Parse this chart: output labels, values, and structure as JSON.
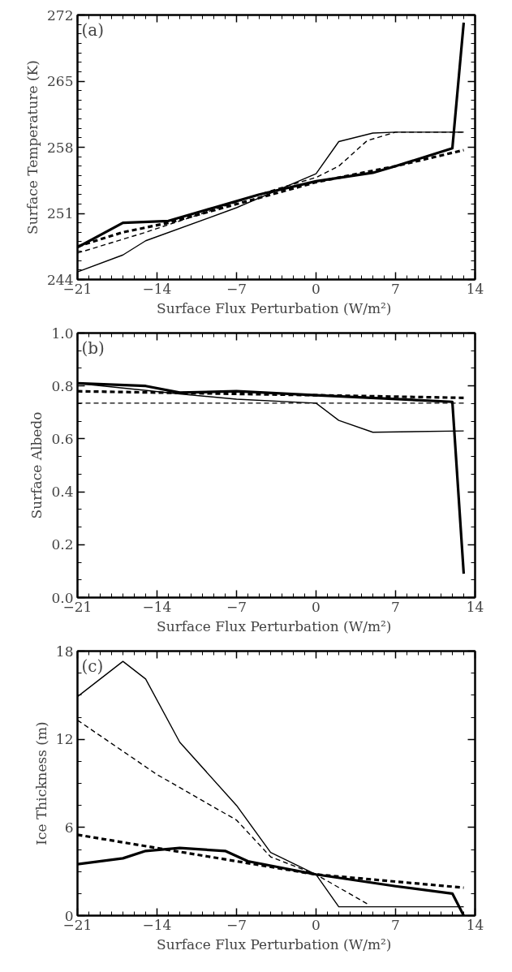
{
  "chart_data": [
    {
      "type": "line",
      "xlabel": "Surface Flux Perturbation  (W/m²)",
      "ylabel": "Surface Temperature (K)",
      "annotations": [
        "(a)"
      ],
      "xlim": [
        -21,
        14
      ],
      "xticks": [
        -21,
        -14,
        -7,
        0,
        7,
        14
      ],
      "ylim": [
        244,
        272
      ],
      "yticks": [
        244,
        251,
        258,
        265,
        272
      ],
      "marker": "none",
      "series": [
        {
          "color": "#000000",
          "line_style": "solid",
          "x": [
            -21,
            -17,
            -13,
            -5,
            0,
            5,
            7,
            12,
            13
          ],
          "values": [
            247.4,
            250.0,
            250.2,
            253.0,
            254.4,
            255.3,
            256.0,
            257.9,
            271.2
          ]
        },
        {
          "color": "#000000",
          "line_style": "dashed",
          "x": [
            -21,
            -17,
            -13,
            0,
            7,
            13
          ],
          "values": [
            247.5,
            249.0,
            250.0,
            254.3,
            256.0,
            257.7
          ]
        },
        {
          "color": "#000000",
          "line_style": "solid",
          "x": [
            -21,
            -17,
            -15,
            -7,
            0,
            2,
            5,
            7,
            13
          ],
          "values": [
            244.8,
            246.6,
            248.1,
            251.6,
            255.2,
            258.6,
            259.5,
            259.6,
            259.6
          ]
        },
        {
          "color": "#000000",
          "line_style": "dashed",
          "x": [
            -21,
            -15,
            -7,
            -4,
            0,
            2,
            4.5,
            7,
            13
          ],
          "values": [
            246.8,
            249.0,
            252.2,
            253.4,
            254.8,
            256.0,
            258.7,
            259.6,
            259.6
          ]
        }
      ]
    },
    {
      "type": "line",
      "xlabel": "Surface Flux Perturbation  (W/m²)",
      "ylabel": "Surface Albedo",
      "annotations": [
        "(b)"
      ],
      "xlim": [
        -21,
        14
      ],
      "xticks": [
        -21,
        -14,
        -7,
        0,
        7,
        14
      ],
      "ylim": [
        0.0,
        1.0
      ],
      "yticks": [
        {
          "value": 0,
          "label": "0.0"
        },
        0.2,
        0.4,
        0.6,
        0.8,
        {
          "value": 1,
          "label": "1.0"
        }
      ],
      "marker": "none",
      "series": [
        {
          "color": "#000000",
          "line_style": "solid",
          "x": [
            -21,
            -15,
            -12,
            -7,
            0,
            12,
            13
          ],
          "values": [
            0.81,
            0.8,
            0.775,
            0.78,
            0.765,
            0.74,
            0.09
          ]
        },
        {
          "color": "#000000",
          "line_style": "dashed",
          "x": [
            -21,
            -7,
            0,
            13
          ],
          "values": [
            0.78,
            0.77,
            0.765,
            0.755
          ]
        },
        {
          "color": "#000000",
          "line_style": "solid",
          "x": [
            -21,
            -12,
            -7,
            0,
            2,
            5,
            13
          ],
          "values": [
            0.81,
            0.77,
            0.75,
            0.735,
            0.67,
            0.625,
            0.63
          ]
        },
        {
          "color": "#000000",
          "line_style": "dashed",
          "x": [
            -21,
            13
          ],
          "values": [
            0.735,
            0.735
          ]
        }
      ]
    },
    {
      "type": "line",
      "xlabel": "Surface Flux Perturbation  (W/m²)",
      "ylabel": "Ice Thickness (m)",
      "annotations": [
        "(c)"
      ],
      "xlim": [
        -21,
        14
      ],
      "xticks": [
        -21,
        -14,
        -7,
        0,
        7,
        14
      ],
      "ylim": [
        0,
        18
      ],
      "yticks": [
        0,
        6,
        12,
        18
      ],
      "marker": "none",
      "series": [
        {
          "color": "#000000",
          "line_style": "solid",
          "x": [
            -21,
            -17,
            -15,
            -12,
            -8,
            -6,
            0,
            7,
            12,
            13
          ],
          "values": [
            3.5,
            3.9,
            4.4,
            4.6,
            4.4,
            3.7,
            2.8,
            2.0,
            1.5,
            0.0
          ]
        },
        {
          "color": "#000000",
          "line_style": "dashed",
          "x": [
            -21,
            -14,
            -7,
            0,
            13
          ],
          "values": [
            5.5,
            4.6,
            3.7,
            2.8,
            1.9
          ]
        },
        {
          "color": "#000000",
          "line_style": "solid",
          "x": [
            -21,
            -17,
            -15,
            -12,
            -7,
            -4,
            0,
            2,
            13
          ],
          "values": [
            14.9,
            17.3,
            16.1,
            11.8,
            7.5,
            4.3,
            2.8,
            0.6,
            0.6
          ]
        },
        {
          "color": "#000000",
          "line_style": "dashed",
          "x": [
            -21,
            -14,
            -7,
            -4,
            0,
            4.5
          ],
          "values": [
            13.3,
            9.6,
            6.5,
            4.0,
            2.8,
            0.8
          ]
        }
      ]
    }
  ]
}
